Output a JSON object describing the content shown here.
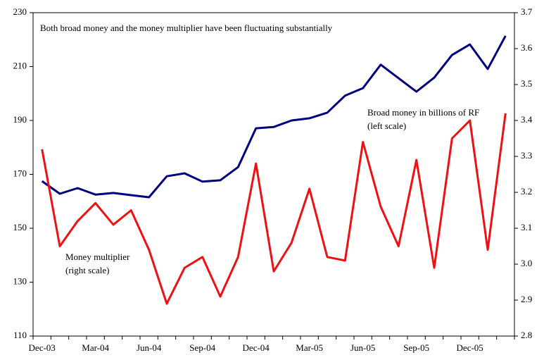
{
  "chart_data": {
    "type": "line",
    "title": "Both broad money and the money multiplier have been fluctuating substantially",
    "categories": [
      "Dec-03",
      null,
      null,
      "Mar-04",
      null,
      null,
      "Jun-04",
      null,
      null,
      "Sep-04",
      null,
      null,
      "Dec-04",
      null,
      null,
      "Mar-05",
      null,
      null,
      "Jun-05",
      null,
      null,
      "Sep-05",
      null,
      null,
      "Dec-05",
      null,
      null
    ],
    "series": [
      {
        "name": "Broad money in billions of RF",
        "scale_note": "(left scale)",
        "color": "#000080",
        "values": [
          167.5,
          162.8,
          164.9,
          162.5,
          163.1,
          162.3,
          161.5,
          169.3,
          170.4,
          167.3,
          167.8,
          172.7,
          187.1,
          187.6,
          190.0,
          190.8,
          192.9,
          199.2,
          202.0,
          210.7,
          205.7,
          200.7,
          205.9,
          214.3,
          218.2,
          209.1,
          221.4
        ]
      },
      {
        "name": "Money multiplier",
        "scale_note": "(right scale)",
        "color": "#ee1111",
        "axis": "y2",
        "values": [
          3.32,
          3.05,
          3.12,
          3.17,
          3.11,
          3.15,
          3.04,
          2.89,
          2.99,
          3.02,
          2.91,
          3.02,
          3.28,
          2.98,
          3.06,
          3.21,
          3.02,
          3.01,
          3.34,
          3.16,
          3.05,
          3.29,
          2.99,
          3.35,
          3.4,
          3.04,
          3.42
        ]
      }
    ],
    "ylim": [
      110,
      230
    ],
    "yticks": [
      110,
      130,
      150,
      170,
      190,
      210,
      230
    ],
    "y2lim": [
      2.8,
      3.7
    ],
    "y2ticks": [
      2.8,
      2.9,
      {
        "value": 3,
        "label": "3.0"
      },
      3.1,
      3.2,
      3.3,
      3.4,
      3.5,
      3.6,
      3.7
    ],
    "grid": false
  }
}
